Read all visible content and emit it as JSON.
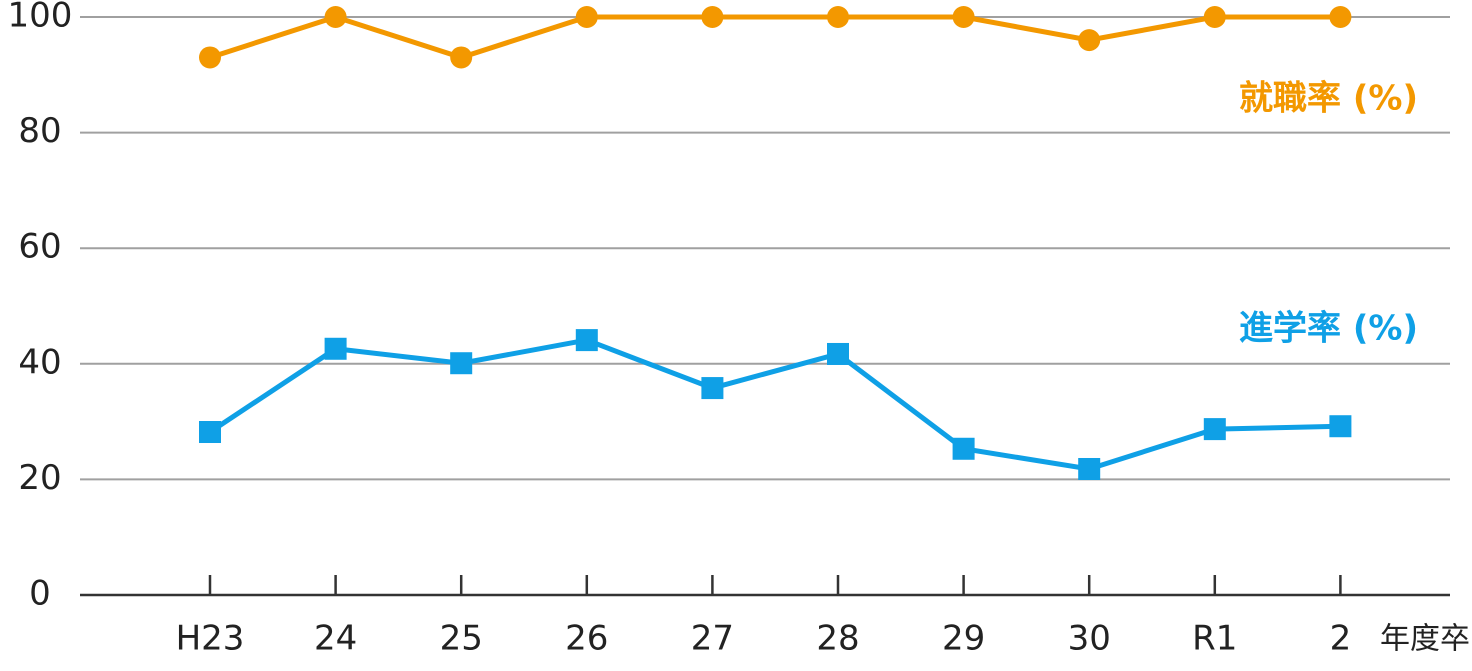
{
  "chart_data": {
    "type": "line",
    "categories": [
      "H23",
      "24",
      "25",
      "26",
      "27",
      "28",
      "29",
      "30",
      "R1",
      "2"
    ],
    "x_label": "年度卒",
    "series": [
      {
        "name": "就職率 (%)",
        "color": "#f39800",
        "marker": "circle",
        "values": [
          93,
          100,
          93,
          100,
          100,
          100,
          100,
          96,
          100,
          100
        ]
      },
      {
        "name": "進学率 (%)",
        "color": "#0fa0e6",
        "marker": "square",
        "values": [
          28.2,
          42.6,
          40.1,
          44.1,
          35.8,
          41.7,
          25.3,
          21.8,
          28.7,
          29.2
        ]
      }
    ],
    "ylim": [
      0,
      100
    ],
    "yticks": [
      0,
      20,
      40,
      60,
      80,
      100
    ],
    "grid": true
  }
}
